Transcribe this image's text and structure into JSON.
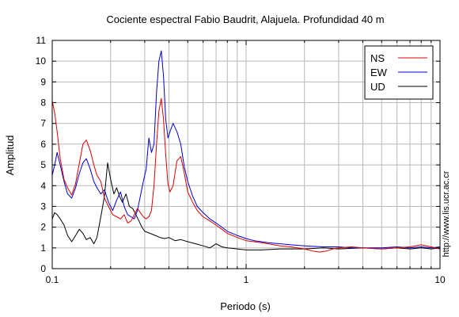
{
  "chart_data": {
    "type": "line",
    "title": "Cociente espectral Fabio Baudrit, Alajuela. Profundidad 40 m",
    "xlabel": "Periodo (s)",
    "ylabel": "Amplitud",
    "x_scale": "log",
    "xlim": [
      0.1,
      10
    ],
    "ylim": [
      0,
      11
    ],
    "x_ticks": [
      {
        "value": 0.1,
        "label": "0.1"
      },
      {
        "value": 1,
        "label": "1"
      },
      {
        "value": 10,
        "label": "10"
      }
    ],
    "y_ticks": [
      0,
      1,
      2,
      3,
      4,
      5,
      6,
      7,
      8,
      9,
      10,
      11
    ],
    "y_tick_labels": [
      "0",
      "1",
      "2",
      "3",
      "4",
      "5",
      "6",
      "7",
      "8",
      "9",
      "10",
      "11"
    ],
    "grid": true,
    "legend_position": "top-right",
    "series": [
      {
        "name": "NS",
        "color": "#dd0000",
        "points": [
          [
            0.1,
            8.1
          ],
          [
            0.103,
            7.5
          ],
          [
            0.106,
            6.6
          ],
          [
            0.11,
            5.3
          ],
          [
            0.115,
            4.3
          ],
          [
            0.12,
            3.9
          ],
          [
            0.126,
            3.55
          ],
          [
            0.132,
            4.1
          ],
          [
            0.138,
            5.1
          ],
          [
            0.144,
            6.0
          ],
          [
            0.15,
            6.2
          ],
          [
            0.157,
            5.7
          ],
          [
            0.164,
            5.0
          ],
          [
            0.17,
            4.5
          ],
          [
            0.178,
            4.2
          ],
          [
            0.186,
            3.4
          ],
          [
            0.195,
            3.0
          ],
          [
            0.205,
            2.6
          ],
          [
            0.215,
            2.5
          ],
          [
            0.225,
            2.4
          ],
          [
            0.235,
            2.6
          ],
          [
            0.245,
            2.2
          ],
          [
            0.255,
            2.3
          ],
          [
            0.265,
            2.6
          ],
          [
            0.275,
            2.9
          ],
          [
            0.285,
            2.7
          ],
          [
            0.295,
            2.5
          ],
          [
            0.305,
            2.4
          ],
          [
            0.315,
            2.5
          ],
          [
            0.325,
            2.8
          ],
          [
            0.335,
            4.0
          ],
          [
            0.345,
            6.0
          ],
          [
            0.355,
            7.6
          ],
          [
            0.365,
            8.2
          ],
          [
            0.375,
            7.2
          ],
          [
            0.385,
            5.5
          ],
          [
            0.395,
            4.1
          ],
          [
            0.405,
            3.7
          ],
          [
            0.42,
            4.0
          ],
          [
            0.44,
            5.2
          ],
          [
            0.46,
            5.4
          ],
          [
            0.48,
            4.6
          ],
          [
            0.5,
            3.7
          ],
          [
            0.53,
            3.2
          ],
          [
            0.56,
            2.8
          ],
          [
            0.6,
            2.5
          ],
          [
            0.65,
            2.3
          ],
          [
            0.7,
            2.1
          ],
          [
            0.75,
            1.9
          ],
          [
            0.8,
            1.7
          ],
          [
            0.9,
            1.5
          ],
          [
            1.0,
            1.35
          ],
          [
            1.1,
            1.3
          ],
          [
            1.2,
            1.25
          ],
          [
            1.3,
            1.2
          ],
          [
            1.5,
            1.1
          ],
          [
            1.7,
            1.05
          ],
          [
            2.0,
            0.95
          ],
          [
            2.2,
            0.85
          ],
          [
            2.4,
            0.8
          ],
          [
            2.6,
            0.85
          ],
          [
            2.8,
            0.95
          ],
          [
            3.0,
            1.0
          ],
          [
            3.5,
            1.05
          ],
          [
            4.0,
            1.0
          ],
          [
            5.0,
            0.95
          ],
          [
            6.0,
            1.0
          ],
          [
            7.0,
            1.05
          ],
          [
            8.0,
            1.15
          ],
          [
            9.0,
            1.05
          ],
          [
            10.0,
            0.95
          ]
        ]
      },
      {
        "name": "EW",
        "color": "#0000cc",
        "points": [
          [
            0.1,
            4.5
          ],
          [
            0.103,
            5.0
          ],
          [
            0.106,
            5.6
          ],
          [
            0.11,
            5.0
          ],
          [
            0.115,
            4.2
          ],
          [
            0.12,
            3.6
          ],
          [
            0.126,
            3.4
          ],
          [
            0.132,
            3.9
          ],
          [
            0.138,
            4.6
          ],
          [
            0.144,
            5.1
          ],
          [
            0.15,
            5.3
          ],
          [
            0.157,
            4.8
          ],
          [
            0.164,
            4.2
          ],
          [
            0.17,
            3.9
          ],
          [
            0.178,
            3.6
          ],
          [
            0.186,
            3.8
          ],
          [
            0.195,
            3.2
          ],
          [
            0.205,
            2.8
          ],
          [
            0.215,
            3.3
          ],
          [
            0.225,
            3.7
          ],
          [
            0.235,
            3.0
          ],
          [
            0.245,
            2.6
          ],
          [
            0.255,
            2.5
          ],
          [
            0.265,
            2.4
          ],
          [
            0.275,
            2.8
          ],
          [
            0.285,
            3.5
          ],
          [
            0.295,
            4.2
          ],
          [
            0.305,
            4.8
          ],
          [
            0.315,
            6.3
          ],
          [
            0.325,
            5.6
          ],
          [
            0.335,
            6.0
          ],
          [
            0.345,
            8.5
          ],
          [
            0.355,
            10.0
          ],
          [
            0.365,
            10.5
          ],
          [
            0.375,
            9.3
          ],
          [
            0.385,
            7.2
          ],
          [
            0.395,
            6.3
          ],
          [
            0.405,
            6.6
          ],
          [
            0.42,
            7.0
          ],
          [
            0.44,
            6.6
          ],
          [
            0.46,
            6.0
          ],
          [
            0.48,
            4.9
          ],
          [
            0.5,
            4.2
          ],
          [
            0.53,
            3.5
          ],
          [
            0.56,
            3.0
          ],
          [
            0.6,
            2.7
          ],
          [
            0.65,
            2.4
          ],
          [
            0.7,
            2.2
          ],
          [
            0.75,
            2.0
          ],
          [
            0.8,
            1.8
          ],
          [
            0.9,
            1.6
          ],
          [
            1.0,
            1.45
          ],
          [
            1.1,
            1.35
          ],
          [
            1.2,
            1.3
          ],
          [
            1.3,
            1.25
          ],
          [
            1.5,
            1.2
          ],
          [
            1.7,
            1.15
          ],
          [
            2.0,
            1.1
          ],
          [
            2.5,
            1.05
          ],
          [
            3.0,
            1.05
          ],
          [
            3.5,
            1.0
          ],
          [
            4.0,
            1.0
          ],
          [
            5.0,
            1.0
          ],
          [
            6.0,
            1.05
          ],
          [
            7.0,
            1.0
          ],
          [
            8.0,
            1.05
          ],
          [
            9.0,
            1.0
          ],
          [
            10.0,
            1.05
          ]
        ]
      },
      {
        "name": "UD",
        "color": "#000000",
        "points": [
          [
            0.1,
            2.4
          ],
          [
            0.103,
            2.7
          ],
          [
            0.106,
            2.6
          ],
          [
            0.11,
            2.4
          ],
          [
            0.115,
            2.1
          ],
          [
            0.12,
            1.6
          ],
          [
            0.126,
            1.3
          ],
          [
            0.132,
            1.6
          ],
          [
            0.138,
            1.9
          ],
          [
            0.144,
            1.7
          ],
          [
            0.15,
            1.4
          ],
          [
            0.157,
            1.5
          ],
          [
            0.164,
            1.2
          ],
          [
            0.17,
            1.5
          ],
          [
            0.178,
            2.5
          ],
          [
            0.186,
            3.5
          ],
          [
            0.193,
            5.1
          ],
          [
            0.2,
            4.3
          ],
          [
            0.208,
            3.6
          ],
          [
            0.215,
            3.9
          ],
          [
            0.222,
            3.5
          ],
          [
            0.23,
            3.2
          ],
          [
            0.24,
            3.6
          ],
          [
            0.25,
            3.0
          ],
          [
            0.26,
            2.9
          ],
          [
            0.27,
            2.6
          ],
          [
            0.28,
            2.3
          ],
          [
            0.29,
            2.0
          ],
          [
            0.3,
            1.8
          ],
          [
            0.32,
            1.7
          ],
          [
            0.34,
            1.6
          ],
          [
            0.36,
            1.5
          ],
          [
            0.38,
            1.45
          ],
          [
            0.4,
            1.5
          ],
          [
            0.43,
            1.35
          ],
          [
            0.46,
            1.4
          ],
          [
            0.5,
            1.3
          ],
          [
            0.55,
            1.2
          ],
          [
            0.6,
            1.1
          ],
          [
            0.65,
            1.0
          ],
          [
            0.7,
            1.2
          ],
          [
            0.75,
            1.05
          ],
          [
            0.8,
            1.0
          ],
          [
            0.9,
            0.95
          ],
          [
            1.0,
            0.9
          ],
          [
            1.2,
            0.9
          ],
          [
            1.5,
            0.95
          ],
          [
            2.0,
            0.95
          ],
          [
            2.5,
            1.0
          ],
          [
            3.0,
            0.95
          ],
          [
            4.0,
            1.0
          ],
          [
            5.0,
            0.95
          ],
          [
            6.0,
            1.0
          ],
          [
            7.0,
            0.95
          ],
          [
            8.0,
            1.0
          ],
          [
            9.0,
            0.95
          ],
          [
            10.0,
            1.0
          ]
        ]
      }
    ],
    "side_annotation": "http://www.lis.ucr.ac.cr"
  }
}
